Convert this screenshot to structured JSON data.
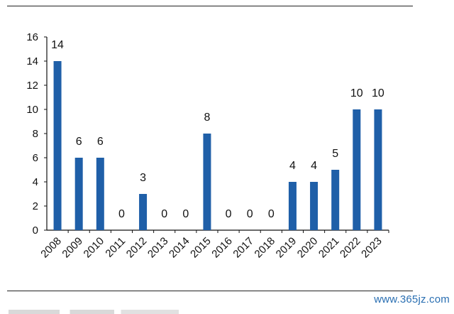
{
  "chart_data": {
    "type": "bar",
    "categories": [
      "2008",
      "2009",
      "2010",
      "2011",
      "2012",
      "2013",
      "2014",
      "2015",
      "2016",
      "2017",
      "2018",
      "2019",
      "2020",
      "2021",
      "2022",
      "2023"
    ],
    "values": [
      14,
      6,
      6,
      0,
      3,
      0,
      0,
      8,
      0,
      0,
      0,
      4,
      4,
      5,
      10,
      10
    ],
    "data_labels": [
      "14",
      "6",
      "6",
      "0",
      "3",
      "0",
      "0",
      "8",
      "0",
      "0",
      "0",
      "4",
      "4",
      "5",
      "10",
      "10"
    ],
    "yticks": [
      "0",
      "2",
      "4",
      "6",
      "8",
      "10",
      "12",
      "14",
      "16"
    ],
    "ylim": [
      0,
      16
    ],
    "title": "",
    "xlabel": "",
    "ylabel": "",
    "grid": false,
    "bar_color": "#1f5fa8"
  },
  "watermark": "www.365jz.com"
}
